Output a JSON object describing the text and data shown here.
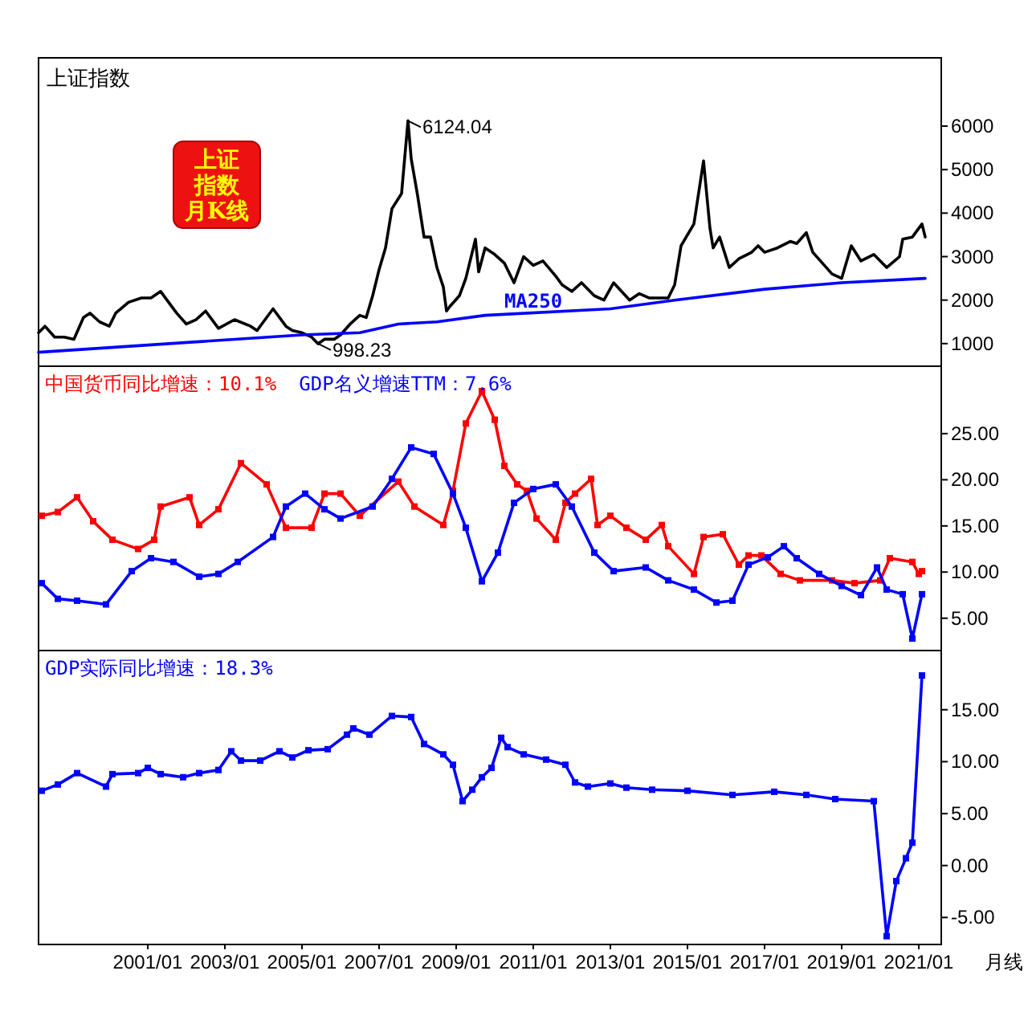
{
  "chart_data": [
    {
      "type": "line",
      "title": "上证指数",
      "xlim": [
        "1998-03",
        "2021-08"
      ],
      "ylim": [
        480,
        7570
      ],
      "yticks": [
        1000,
        2000,
        3000,
        4000,
        5000,
        6000
      ],
      "tick_labels": "y",
      "legend": false,
      "grid": false,
      "series": [
        {
          "color": "#000000",
          "marker": "none",
          "x": [
            "1998-03",
            "1998-05",
            "1998-08",
            "1998-11",
            "1999-02",
            "1999-05",
            "1999-07",
            "1999-10",
            "2000-01",
            "2000-03",
            "2000-07",
            "2000-11",
            "2001-02",
            "2001-05",
            "2001-08",
            "2001-10",
            "2002-01",
            "2002-04",
            "2002-07",
            "2002-11",
            "2003-04",
            "2003-09",
            "2003-11",
            "2004-01",
            "2004-04",
            "2004-08",
            "2004-10",
            "2005-01",
            "2005-04",
            "2005-06",
            "2005-08",
            "2005-11",
            "2006-01",
            "2006-04",
            "2006-07",
            "2006-09",
            "2006-11",
            "2007-01",
            "2007-03",
            "2007-05",
            "2007-08",
            "2007-10",
            "2007-11",
            "2008-01",
            "2008-03",
            "2008-05",
            "2008-07",
            "2008-09",
            "2008-10",
            "2008-11",
            "2009-02",
            "2009-04",
            "2009-07",
            "2009-08",
            "2009-10",
            "2010-01",
            "2010-04",
            "2010-07",
            "2010-10",
            "2011-01",
            "2011-04",
            "2011-08",
            "2011-10",
            "2012-01",
            "2012-04",
            "2012-08",
            "2012-11",
            "2013-02",
            "2013-07",
            "2013-10",
            "2014-01",
            "2014-07",
            "2014-09",
            "2014-11",
            "2015-03",
            "2015-06",
            "2015-08",
            "2015-09",
            "2015-11",
            "2016-02",
            "2016-05",
            "2016-09",
            "2016-11",
            "2017-01",
            "2017-05",
            "2017-09",
            "2017-11",
            "2018-02",
            "2018-04",
            "2018-07",
            "2018-10",
            "2019-01",
            "2019-04",
            "2019-07",
            "2019-11",
            "2020-03",
            "2020-07",
            "2020-08",
            "2020-11",
            "2021-02",
            "2021-03"
          ],
          "values": [
            1250,
            1400,
            1150,
            1150,
            1100,
            1600,
            1700,
            1500,
            1400,
            1700,
            1950,
            2050,
            2050,
            2200,
            1900,
            1700,
            1450,
            1550,
            1750,
            1350,
            1550,
            1400,
            1300,
            1500,
            1800,
            1400,
            1300,
            1250,
            1150,
            998.23,
            1100,
            1100,
            1200,
            1450,
            1650,
            1600,
            2100,
            2700,
            3200,
            4100,
            4450,
            6124.04,
            5250,
            4400,
            3450,
            3450,
            2750,
            2300,
            1750,
            1850,
            2100,
            2500,
            3400,
            2650,
            3200,
            3050,
            2850,
            2400,
            3000,
            2800,
            2900,
            2550,
            2350,
            2200,
            2400,
            2100,
            2000,
            2400,
            2000,
            2150,
            2050,
            2050,
            2350,
            3250,
            3750,
            5200,
            3650,
            3200,
            3450,
            2750,
            2950,
            3100,
            3250,
            3100,
            3200,
            3350,
            3300,
            3550,
            3100,
            2850,
            2600,
            2500,
            3250,
            2900,
            3050,
            2750,
            3000,
            3400,
            3450,
            3750,
            3450
          ]
        },
        {
          "name": "MA250",
          "color": "#0000ff",
          "marker": "none",
          "x": [
            "1998-03",
            "2005-01",
            "2006-07",
            "2007-07",
            "2008-07",
            "2009-10",
            "2013-01",
            "2014-09",
            "2017-01",
            "2019-01",
            "2021-03"
          ],
          "values": [
            800,
            1200,
            1250,
            1450,
            1500,
            1650,
            1800,
            2000,
            2250,
            2400,
            2500
          ]
        }
      ],
      "annotations": [
        {
          "text": "6124.04",
          "x": "2007-10",
          "y": 6124.04
        },
        {
          "text": "998.23",
          "x": "2005-06",
          "y": 998.23
        },
        "上证指数月K线"
      ]
    },
    {
      "type": "line",
      "xlim": [
        "1998-03",
        "2021-08"
      ],
      "ylim": [
        1.5,
        32.3
      ],
      "yticks": [
        {
          "value": 5,
          "label": "5.00"
        },
        {
          "value": 10,
          "label": "10.00"
        },
        {
          "value": 15,
          "label": "15.00"
        },
        {
          "value": 20,
          "label": "20.00"
        },
        {
          "value": 25,
          "label": "25.00"
        }
      ],
      "tick_labels": "y",
      "legend": "top left",
      "grid": false,
      "series": [
        {
          "name": "中国货币同比增速：10.1%",
          "color": "#ff0000",
          "marker": "square",
          "x": [
            "1998-04",
            "1998-09",
            "1999-03",
            "1999-08",
            "2000-02",
            "2000-10",
            "2001-03",
            "2001-05",
            "2002-02",
            "2002-05",
            "2002-11",
            "2003-06",
            "2004-02",
            "2004-08",
            "2005-04",
            "2005-08",
            "2006-01",
            "2006-07",
            "2007-07",
            "2007-12",
            "2008-09",
            "2008-12",
            "2009-04",
            "2009-09",
            "2010-01",
            "2010-04",
            "2010-08",
            "2010-11",
            "2011-02",
            "2011-08",
            "2011-11",
            "2012-02",
            "2012-07",
            "2012-09",
            "2013-01",
            "2013-06",
            "2013-12",
            "2014-05",
            "2014-07",
            "2015-03",
            "2015-06",
            "2015-12",
            "2016-05",
            "2016-08",
            "2016-12",
            "2017-06",
            "2017-12",
            "2018-10",
            "2019-05",
            "2020-01",
            "2020-04",
            "2020-11",
            "2021-01",
            "2021-02"
          ],
          "values": [
            16.1,
            16.5,
            18.1,
            15.5,
            13.5,
            12.5,
            13.5,
            17.1,
            18.1,
            15.1,
            16.8,
            21.8,
            19.5,
            14.8,
            14.8,
            18.5,
            18.5,
            16.1,
            19.8,
            17.1,
            15.1,
            18.8,
            26.1,
            29.6,
            26.5,
            21.5,
            19.5,
            18.8,
            15.8,
            13.5,
            17.5,
            18.5,
            20.1,
            15.1,
            16.1,
            14.8,
            13.5,
            15.1,
            12.8,
            9.8,
            13.8,
            14.1,
            10.8,
            11.8,
            11.8,
            9.8,
            9.1,
            9.1,
            8.8,
            9.1,
            11.5,
            11.1,
            9.8,
            10.1
          ]
        },
        {
          "name": "GDP名义增速TTM：7.6%",
          "color": "#0000ff",
          "marker": "square",
          "x": [
            "1998-04",
            "1998-09",
            "1999-03",
            "1999-12",
            "2000-08",
            "2001-02",
            "2001-09",
            "2002-05",
            "2002-11",
            "2003-05",
            "2004-04",
            "2004-08",
            "2005-02",
            "2005-08",
            "2006-01",
            "2006-11",
            "2007-05",
            "2007-11",
            "2008-06",
            "2008-12",
            "2009-04",
            "2009-09",
            "2010-02",
            "2010-07",
            "2011-01",
            "2011-08",
            "2012-01",
            "2012-08",
            "2013-02",
            "2013-12",
            "2014-07",
            "2015-03",
            "2015-10",
            "2016-03",
            "2016-08",
            "2017-02",
            "2017-07",
            "2017-11",
            "2018-06",
            "2019-01",
            "2019-07",
            "2019-12",
            "2020-03",
            "2020-08",
            "2020-11",
            "2021-02"
          ],
          "values": [
            8.8,
            7.1,
            6.9,
            6.5,
            10.1,
            11.5,
            11.1,
            9.5,
            9.8,
            11.1,
            13.8,
            17.1,
            18.5,
            16.8,
            15.8,
            17.1,
            20.1,
            23.5,
            22.8,
            18.5,
            14.8,
            9.0,
            12.1,
            17.5,
            19.0,
            19.5,
            17.1,
            12.1,
            10.1,
            10.5,
            9.1,
            8.1,
            6.7,
            6.9,
            10.8,
            11.6,
            12.8,
            11.5,
            9.8,
            8.5,
            7.5,
            10.5,
            8.1,
            7.6,
            2.8,
            7.6
          ]
        }
      ]
    },
    {
      "type": "line",
      "xlim": [
        "1998-03",
        "2021-08"
      ],
      "ylim": [
        -7.6,
        20.7
      ],
      "yticks": [
        {
          "value": -5,
          "label": "-5.00"
        },
        {
          "value": 0,
          "label": "0.00"
        },
        {
          "value": 5,
          "label": "5.00"
        },
        {
          "value": 10,
          "label": "10.00"
        },
        {
          "value": 15,
          "label": "15.00"
        }
      ],
      "xticks": [
        {
          "value": "2001-01",
          "label": "2001/01"
        },
        {
          "value": "2003-01",
          "label": "2003/01"
        },
        {
          "value": "2005-01",
          "label": "2005/01"
        },
        {
          "value": "2007-01",
          "label": "2007/01"
        },
        {
          "value": "2009-01",
          "label": "2009/01"
        },
        {
          "value": "2011-01",
          "label": "2011/01"
        },
        {
          "value": "2013-01",
          "label": "2013/01"
        },
        {
          "value": "2015-01",
          "label": "2015/01"
        },
        {
          "value": "2017-01",
          "label": "2017/01"
        },
        {
          "value": "2019-01",
          "label": "2019/01"
        },
        {
          "value": "2021-01",
          "label": "2021/01"
        }
      ],
      "legend": "top left",
      "grid": false,
      "series": [
        {
          "name": "GDP实际同比增速：18.3%",
          "color": "#0000ff",
          "marker": "square",
          "x": [
            "1998-04",
            "1998-09",
            "1999-03",
            "1999-12",
            "2000-02",
            "2000-10",
            "2001-01",
            "2001-05",
            "2001-12",
            "2002-05",
            "2002-11",
            "2003-03",
            "2003-06",
            "2003-12",
            "2004-06",
            "2004-10",
            "2005-03",
            "2005-09",
            "2006-03",
            "2006-05",
            "2006-10",
            "2007-05",
            "2007-11",
            "2008-03",
            "2008-09",
            "2008-12",
            "2009-03",
            "2009-06",
            "2009-09",
            "2009-12",
            "2010-03",
            "2010-05",
            "2010-10",
            "2011-05",
            "2011-11",
            "2012-02",
            "2012-06",
            "2013-01",
            "2013-06",
            "2014-02",
            "2015-01",
            "2016-03",
            "2017-04",
            "2018-02",
            "2018-11",
            "2019-11",
            "2020-03",
            "2020-06",
            "2020-09",
            "2020-11",
            "2021-02"
          ],
          "values": [
            7.2,
            7.8,
            8.9,
            7.6,
            8.8,
            8.9,
            9.4,
            8.8,
            8.5,
            8.9,
            9.2,
            11.0,
            10.1,
            10.1,
            11.0,
            10.4,
            11.1,
            11.2,
            12.6,
            13.2,
            12.6,
            14.4,
            14.3,
            11.7,
            10.7,
            9.7,
            6.2,
            7.3,
            8.5,
            9.4,
            12.3,
            11.4,
            10.7,
            10.2,
            9.7,
            8.0,
            7.6,
            7.9,
            7.5,
            7.3,
            7.2,
            6.8,
            7.1,
            6.8,
            6.4,
            6.2,
            -6.8,
            -1.5,
            0.7,
            2.2,
            18.3
          ]
        }
      ],
      "annotations": [
        "月线"
      ]
    }
  ]
}
